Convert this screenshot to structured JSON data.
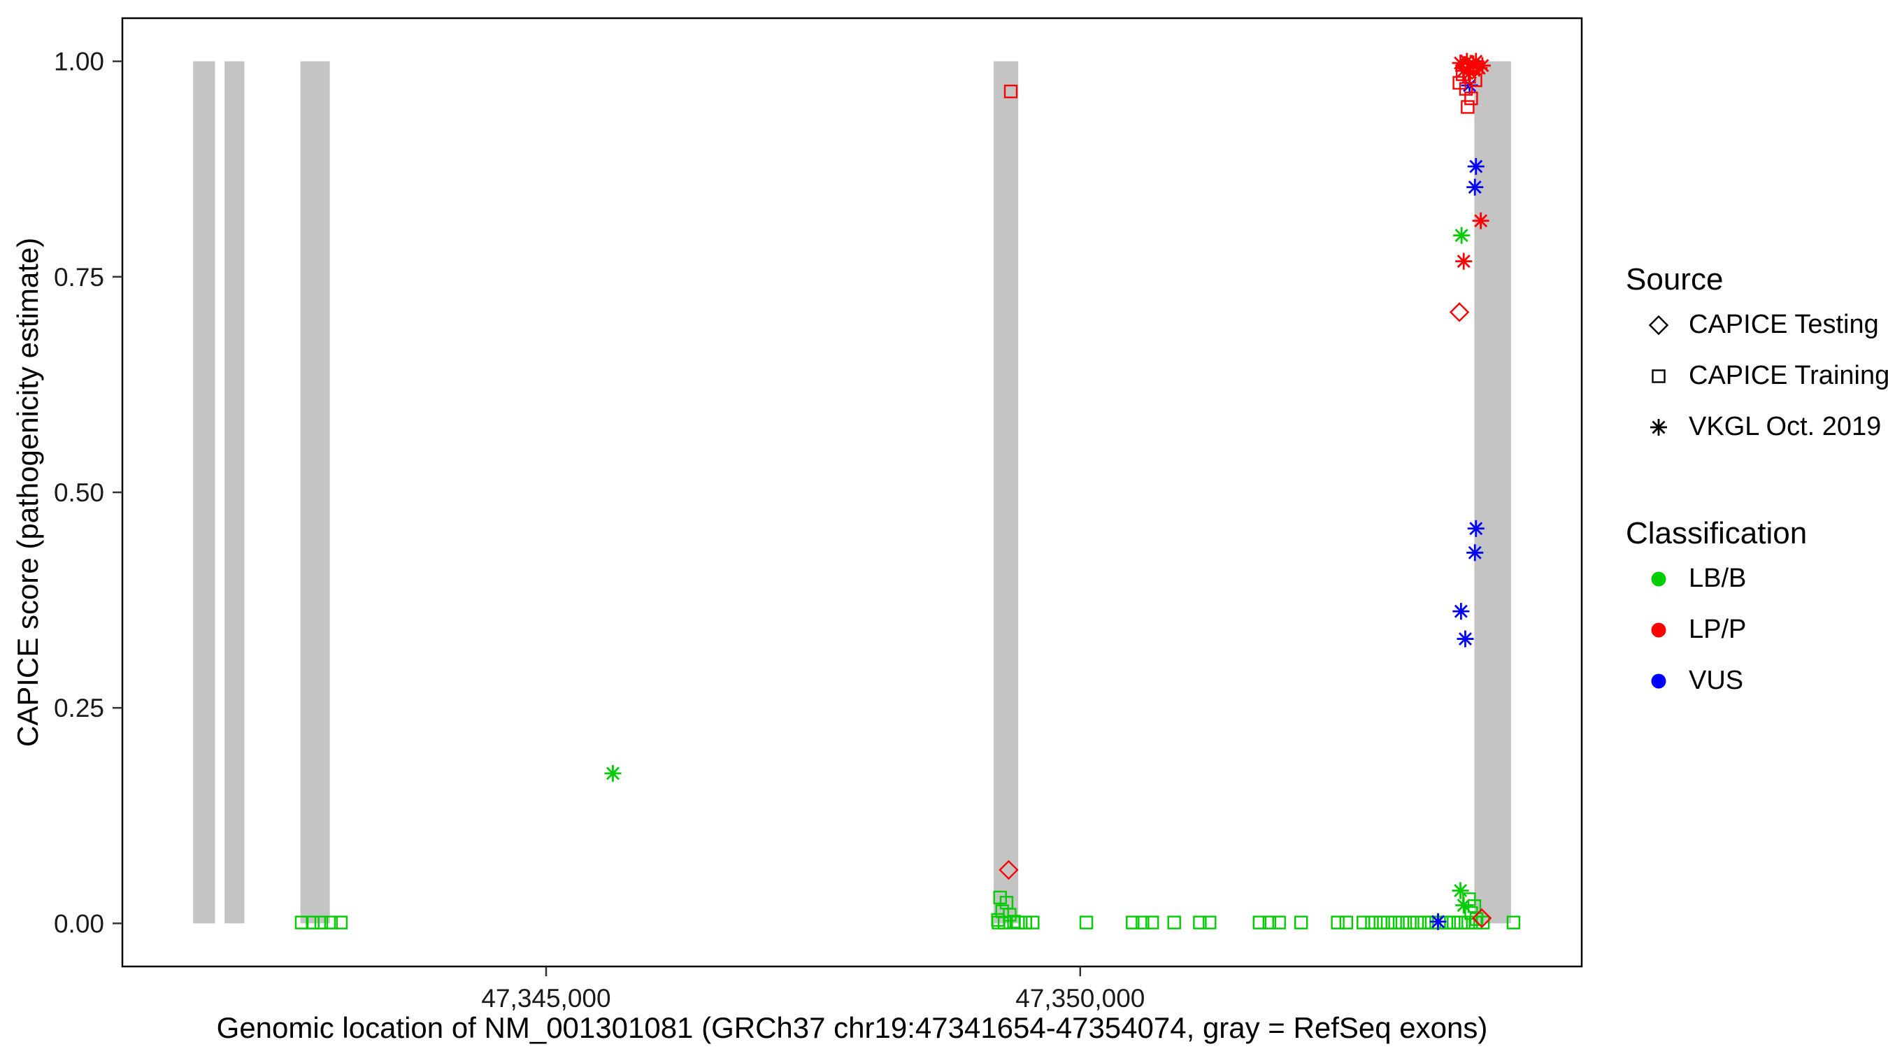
{
  "chart_data": {
    "type": "scatter",
    "title": "",
    "xlabel": "Genomic location of NM_001301081 (GRCh37 chr19:47341654-47354074, gray = RefSeq exons)",
    "ylabel": "CAPICE score (pathogenicity estimate)",
    "x_domain": [
      47341033,
      47354695
    ],
    "y_domain": [
      -0.05,
      1.05
    ],
    "grid": false,
    "x_ticks": [
      {
        "value": 47345000,
        "label": "47,345,000"
      },
      {
        "value": 47350000,
        "label": "47,350,000"
      }
    ],
    "y_ticks": [
      {
        "value": 0.0,
        "label": "0.00"
      },
      {
        "value": 0.25,
        "label": "0.25"
      },
      {
        "value": 0.5,
        "label": "0.50"
      },
      {
        "value": 0.75,
        "label": "0.75"
      },
      {
        "value": 1.0,
        "label": "1.00"
      }
    ],
    "exons": {
      "color": "#C4C4C4",
      "score_span": [
        0.0,
        1.0
      ],
      "ranges": [
        [
          47341695,
          47341900
        ],
        [
          47341990,
          47342175
        ],
        [
          47342700,
          47342975
        ],
        [
          47349190,
          47349420
        ],
        [
          47353690,
          47354033
        ]
      ]
    },
    "series": [
      {
        "source": "CAPICE Training",
        "classification": "LB/B",
        "shape": "square",
        "color": "#00CC00",
        "points": [
          [
            47349250,
            0.03
          ],
          [
            47349310,
            0.024
          ],
          [
            47349270,
            0.014
          ],
          [
            47349340,
            0.01
          ],
          [
            47349230,
            0.004
          ],
          [
            47349380,
            0.002
          ],
          [
            47353640,
            0.028
          ],
          [
            47353690,
            0.02
          ],
          [
            47353660,
            0.012
          ],
          [
            47353710,
            0.005
          ],
          [
            47342712,
            0.001
          ],
          [
            47342815,
            0.001
          ],
          [
            47342895,
            0.001
          ],
          [
            47342986,
            0.001
          ],
          [
            47343078,
            0.001
          ],
          [
            47349235,
            0.001
          ],
          [
            47349292,
            0.001
          ],
          [
            47349418,
            0.001
          ],
          [
            47349486,
            0.001
          ],
          [
            47349555,
            0.001
          ],
          [
            47350057,
            0.001
          ],
          [
            47350491,
            0.001
          ],
          [
            47350583,
            0.001
          ],
          [
            47350674,
            0.001
          ],
          [
            47350880,
            0.001
          ],
          [
            47351120,
            0.001
          ],
          [
            47351211,
            0.001
          ],
          [
            47351679,
            0.001
          ],
          [
            47351771,
            0.001
          ],
          [
            47351862,
            0.001
          ],
          [
            47352068,
            0.001
          ],
          [
            47352411,
            0.001
          ],
          [
            47352491,
            0.001
          ],
          [
            47352651,
            0.001
          ],
          [
            47352731,
            0.001
          ],
          [
            47352811,
            0.001
          ],
          [
            47352879,
            0.001
          ],
          [
            47352948,
            0.001
          ],
          [
            47353016,
            0.001
          ],
          [
            47353085,
            0.001
          ],
          [
            47353153,
            0.001
          ],
          [
            47353222,
            0.001
          ],
          [
            47353290,
            0.001
          ],
          [
            47353359,
            0.001
          ],
          [
            47353427,
            0.001
          ],
          [
            47353496,
            0.001
          ],
          [
            47353564,
            0.001
          ],
          [
            47353633,
            0.001
          ],
          [
            47353701,
            0.001
          ],
          [
            47353770,
            0.001
          ],
          [
            47354056,
            0.001
          ]
        ]
      },
      {
        "source": "VKGL Oct. 2019",
        "classification": "LB/B",
        "shape": "asterisk",
        "color": "#00CC00",
        "points": [
          [
            47353570,
            0.798
          ],
          [
            47345625,
            0.174
          ],
          [
            47353560,
            0.038
          ],
          [
            47353590,
            0.021
          ]
        ]
      },
      {
        "source": "VKGL Oct. 2019",
        "classification": "VUS",
        "shape": "asterisk",
        "color": "#0000FF",
        "points": [
          [
            47353645,
            0.972
          ],
          [
            47353705,
            0.878
          ],
          [
            47353695,
            0.854
          ],
          [
            47353705,
            0.458
          ],
          [
            47353695,
            0.43
          ],
          [
            47353565,
            0.362
          ],
          [
            47353605,
            0.33
          ],
          [
            47353350,
            0.002
          ]
        ]
      },
      {
        "source": "VKGL Oct. 2019",
        "classification": "LP/P",
        "shape": "asterisk",
        "color": "#FF0000",
        "points": [
          [
            47353560,
            0.998
          ],
          [
            47353620,
            1.0
          ],
          [
            47353680,
            0.997
          ],
          [
            47353735,
            0.992
          ],
          [
            47353590,
            0.989
          ],
          [
            47353650,
            0.987
          ],
          [
            47353705,
            1.0
          ],
          [
            47353765,
            0.995
          ],
          [
            47353750,
            0.815
          ],
          [
            47353590,
            0.768
          ]
        ]
      },
      {
        "source": "CAPICE Training",
        "classification": "LP/P",
        "shape": "square",
        "color": "#FF0000",
        "points": [
          [
            47349350,
            0.965
          ],
          [
            47353580,
            0.985
          ],
          [
            47353640,
            0.982
          ],
          [
            47353700,
            0.978
          ],
          [
            47353550,
            0.975
          ],
          [
            47353612,
            0.968
          ],
          [
            47353660,
            0.957
          ],
          [
            47353627,
            0.947
          ]
        ]
      },
      {
        "source": "CAPICE Testing",
        "classification": "LP/P",
        "shape": "diamond",
        "color": "#FF0000",
        "points": [
          [
            47353600,
            0.995
          ],
          [
            47353670,
            0.99
          ],
          [
            47353550,
            0.709
          ],
          [
            47349330,
            0.062
          ],
          [
            47353760,
            0.006
          ]
        ]
      }
    ]
  },
  "legend": {
    "source": {
      "title": "Source",
      "items": [
        {
          "label": "CAPICE Testing",
          "shape": "diamond",
          "color": "#000000"
        },
        {
          "label": "CAPICE Training",
          "shape": "square",
          "color": "#000000"
        },
        {
          "label": "VKGL Oct. 2019",
          "shape": "asterisk",
          "color": "#000000"
        }
      ]
    },
    "classification": {
      "title": "Classification",
      "items": [
        {
          "label": "LB/B",
          "shape": "circle",
          "color": "#00CC00"
        },
        {
          "label": "LP/P",
          "shape": "circle",
          "color": "#FF0000"
        },
        {
          "label": "VUS",
          "shape": "circle",
          "color": "#0000FF"
        }
      ]
    }
  },
  "style": {
    "panel_border_color": "#000000",
    "tick_color": "#333333",
    "tick_label_color": "#1a1a1a"
  }
}
